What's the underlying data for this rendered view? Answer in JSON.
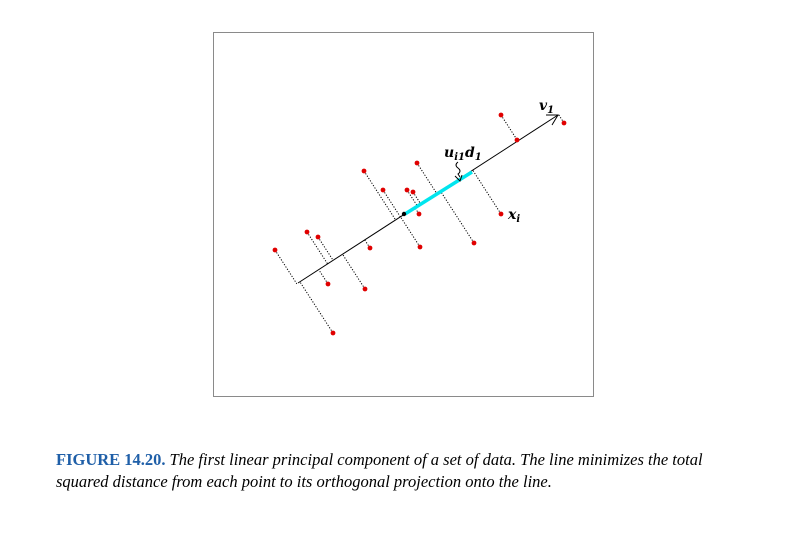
{
  "figure": {
    "labels": {
      "direction": {
        "base": "v",
        "sub": "1"
      },
      "segment": {
        "a": "u",
        "a_sub": "i1",
        "b": "d",
        "b_sub": "1"
      },
      "point": {
        "base": "x",
        "sub": "i"
      }
    },
    "colors": {
      "points": "#e00000",
      "segment": "#00e5ee",
      "line": "#000000",
      "projection": "#000000",
      "frame": "#8a8a8a",
      "caption_label": "#1f5fa8"
    }
  },
  "caption": {
    "label": "FIGURE 14.20.",
    "text": "The first linear principal component of a set of data. The line minimizes the total squared distance from each point to its orthogonal projection onto the line."
  }
}
